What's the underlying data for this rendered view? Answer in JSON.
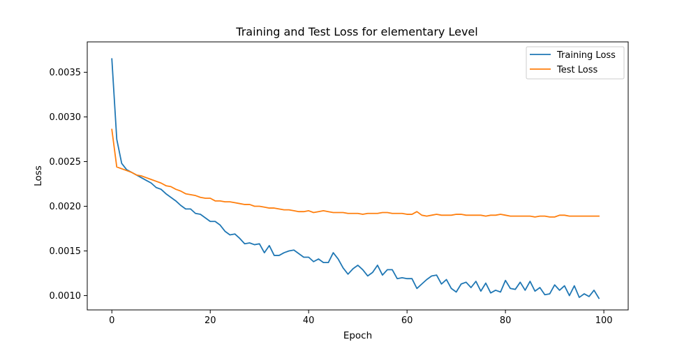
{
  "chart_data": {
    "type": "line",
    "title": "Training and Test Loss for elementary Level",
    "xlabel": "Epoch",
    "ylabel": "Loss",
    "xlim": [
      -5,
      104.95
    ],
    "ylim": [
      0.00084,
      0.00384
    ],
    "xticks": [
      0,
      20,
      40,
      60,
      80,
      100
    ],
    "yticks": [
      0.001,
      0.0015,
      0.002,
      0.0025,
      0.003,
      0.0035
    ],
    "xtick_labels": [
      "0",
      "20",
      "40",
      "60",
      "80",
      "100"
    ],
    "ytick_labels": [
      "0.0010",
      "0.0015",
      "0.0020",
      "0.0025",
      "0.0030",
      "0.0035"
    ],
    "grid": false,
    "legend_position": "top-right",
    "x": [
      0,
      1,
      2,
      3,
      4,
      5,
      6,
      7,
      8,
      9,
      10,
      11,
      12,
      13,
      14,
      15,
      16,
      17,
      18,
      19,
      20,
      21,
      22,
      23,
      24,
      25,
      26,
      27,
      28,
      29,
      30,
      31,
      32,
      33,
      34,
      35,
      36,
      37,
      38,
      39,
      40,
      41,
      42,
      43,
      44,
      45,
      46,
      47,
      48,
      49,
      50,
      51,
      52,
      53,
      54,
      55,
      56,
      57,
      58,
      59,
      60,
      61,
      62,
      63,
      64,
      65,
      66,
      67,
      68,
      69,
      70,
      71,
      72,
      73,
      74,
      75,
      76,
      77,
      78,
      79,
      80,
      81,
      82,
      83,
      84,
      85,
      86,
      87,
      88,
      89,
      90,
      91,
      92,
      93,
      94,
      95,
      96,
      97,
      98,
      99
    ],
    "series": [
      {
        "name": "Training Loss",
        "color": "#1f77b4",
        "values": [
          0.00365,
          0.00275,
          0.00248,
          0.00241,
          0.00238,
          0.00235,
          0.00232,
          0.00229,
          0.00226,
          0.00221,
          0.00219,
          0.00214,
          0.0021,
          0.00206,
          0.00201,
          0.00197,
          0.00197,
          0.00192,
          0.00191,
          0.00187,
          0.00183,
          0.00183,
          0.00179,
          0.00172,
          0.00168,
          0.00169,
          0.00164,
          0.00158,
          0.00159,
          0.00157,
          0.00158,
          0.00148,
          0.00156,
          0.00145,
          0.00145,
          0.00148,
          0.0015,
          0.00151,
          0.00147,
          0.00143,
          0.00143,
          0.00138,
          0.00141,
          0.00137,
          0.00137,
          0.00148,
          0.00141,
          0.00131,
          0.00124,
          0.0013,
          0.00134,
          0.00129,
          0.00122,
          0.00126,
          0.00134,
          0.00123,
          0.00129,
          0.00129,
          0.00119,
          0.0012,
          0.00119,
          0.00119,
          0.00108,
          0.00113,
          0.00118,
          0.00122,
          0.00123,
          0.00113,
          0.00118,
          0.00108,
          0.00104,
          0.00113,
          0.00115,
          0.00109,
          0.00116,
          0.00105,
          0.00114,
          0.00103,
          0.00106,
          0.00104,
          0.00117,
          0.00108,
          0.00107,
          0.00115,
          0.00106,
          0.00116,
          0.00105,
          0.00109,
          0.00101,
          0.00102,
          0.00112,
          0.00106,
          0.00111,
          0.001,
          0.00111,
          0.00098,
          0.00102,
          0.00099,
          0.00106,
          0.00097
        ]
      },
      {
        "name": "Test Loss",
        "color": "#ff7f0e",
        "values": [
          0.00286,
          0.00244,
          0.00242,
          0.0024,
          0.00238,
          0.00235,
          0.00234,
          0.00232,
          0.0023,
          0.00228,
          0.00226,
          0.00223,
          0.00222,
          0.00219,
          0.00217,
          0.00214,
          0.00213,
          0.00212,
          0.0021,
          0.00209,
          0.00209,
          0.00206,
          0.00206,
          0.00205,
          0.00205,
          0.00204,
          0.00203,
          0.00202,
          0.00202,
          0.002,
          0.002,
          0.00199,
          0.00198,
          0.00198,
          0.00197,
          0.00196,
          0.00196,
          0.00195,
          0.00194,
          0.00194,
          0.00195,
          0.00193,
          0.00194,
          0.00195,
          0.00194,
          0.00193,
          0.00193,
          0.00193,
          0.00192,
          0.00192,
          0.00192,
          0.00191,
          0.00192,
          0.00192,
          0.00192,
          0.00193,
          0.00193,
          0.00192,
          0.00192,
          0.00192,
          0.00191,
          0.00191,
          0.00194,
          0.0019,
          0.00189,
          0.0019,
          0.00191,
          0.0019,
          0.0019,
          0.0019,
          0.00191,
          0.00191,
          0.0019,
          0.0019,
          0.0019,
          0.0019,
          0.00189,
          0.0019,
          0.0019,
          0.00191,
          0.0019,
          0.00189,
          0.00189,
          0.00189,
          0.00189,
          0.00189,
          0.00188,
          0.00189,
          0.00189,
          0.00188,
          0.00188,
          0.0019,
          0.0019,
          0.00189,
          0.00189,
          0.00189,
          0.00189,
          0.00189,
          0.00189,
          0.00189
        ]
      }
    ]
  }
}
